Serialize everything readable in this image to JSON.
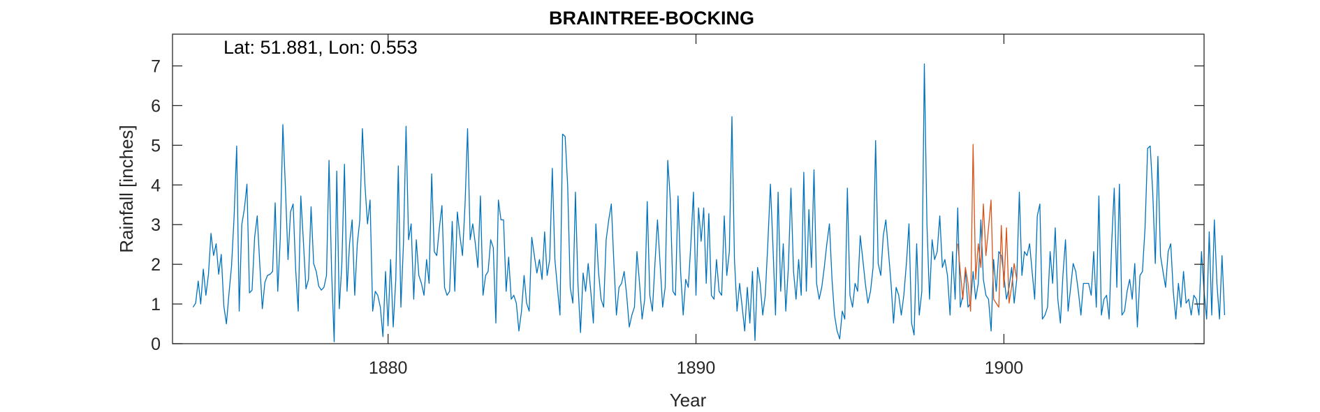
{
  "chart_data": {
    "type": "line",
    "title": "BRAINTREE-BOCKING",
    "xlabel": "Year",
    "ylabel": "Rainfall [inches]",
    "annotation": "Lat: 51.881, Lon: 0.553",
    "xlim": [
      1873.0,
      1906.5
    ],
    "ylim": [
      0,
      7.8
    ],
    "xticks": [
      1880,
      1890,
      1900
    ],
    "yticks": [
      0,
      1,
      2,
      3,
      4,
      5,
      6,
      7
    ],
    "grid": false,
    "legend": "none",
    "colors": {
      "primary": "#0072BD",
      "secondary": "#D95319",
      "axis": "#262626"
    },
    "series": [
      {
        "x_start": 1873.667,
        "x_step": 0.0833333,
        "values": [
          0.92,
          1.02,
          1.58,
          1.0,
          1.88,
          1.22,
          1.75,
          2.78,
          2.22,
          2.52,
          1.75,
          2.25,
          0.95,
          0.5,
          1.25,
          1.95,
          3.2,
          4.98,
          0.82,
          3.0,
          3.4,
          4.02,
          1.28,
          1.35,
          2.68,
          3.22,
          2.02,
          0.88,
          1.55,
          1.72,
          1.75,
          1.82,
          3.55,
          1.32,
          2.65,
          5.52,
          3.92,
          2.12,
          3.32,
          3.52,
          1.85,
          0.82,
          3.72,
          2.58,
          1.38,
          1.62,
          3.45,
          2.02,
          1.82,
          1.45,
          1.35,
          1.42,
          1.72,
          4.62,
          1.82,
          0.05,
          4.35,
          0.88,
          2.02,
          4.52,
          1.32,
          2.52,
          3.12,
          1.22,
          2.52,
          3.12,
          5.42,
          3.98,
          3.02,
          3.62,
          0.82,
          1.32,
          1.22,
          0.92,
          0.18,
          1.82,
          0.45,
          2.12,
          0.42,
          1.62,
          4.48,
          0.92,
          2.52,
          5.48,
          2.62,
          3.02,
          1.12,
          2.62,
          1.72,
          1.52,
          1.22,
          2.12,
          1.52,
          4.28,
          2.32,
          2.22,
          2.92,
          3.48,
          1.42,
          1.22,
          1.32,
          3.08,
          1.32,
          3.32,
          2.72,
          2.22,
          3.52,
          5.42,
          2.62,
          3.02,
          2.52,
          1.92,
          3.72,
          1.22,
          1.72,
          1.82,
          2.62,
          2.42,
          0.52,
          3.62,
          3.12,
          3.12,
          1.32,
          2.18,
          1.12,
          1.22,
          1.02,
          0.32,
          0.82,
          1.72,
          1.02,
          0.82,
          2.68,
          2.22,
          1.78,
          2.12,
          1.62,
          2.82,
          1.72,
          2.12,
          4.42,
          2.12,
          1.42,
          0.72,
          5.28,
          5.22,
          3.98,
          1.42,
          1.02,
          3.82,
          1.52,
          0.28,
          1.78,
          1.32,
          2.02,
          1.32,
          0.52,
          3.02,
          1.82,
          1.12,
          0.92,
          2.62,
          3.12,
          3.52,
          2.02,
          0.72,
          1.42,
          1.52,
          1.82,
          1.22,
          0.42,
          0.72,
          0.92,
          2.32,
          1.52,
          0.62,
          1.12,
          3.58,
          1.22,
          0.82,
          2.02,
          3.12,
          2.02,
          0.92,
          1.42,
          4.62,
          3.62,
          1.32,
          1.22,
          3.72,
          1.82,
          0.72,
          1.62,
          1.42,
          2.52,
          3.82,
          1.22,
          3.42,
          2.58,
          3.42,
          1.52,
          3.28,
          1.22,
          1.12,
          2.12,
          1.32,
          1.22,
          3.22,
          1.72,
          2.32,
          5.72,
          2.12,
          0.82,
          1.52,
          0.92,
          0.32,
          1.42,
          0.52,
          1.82,
          0.08,
          1.92,
          1.52,
          0.72,
          1.22,
          2.52,
          4.02,
          2.42,
          0.72,
          3.82,
          1.32,
          2.52,
          0.82,
          1.92,
          3.92,
          1.82,
          1.12,
          2.12,
          1.22,
          4.32,
          1.32,
          3.38,
          1.92,
          4.38,
          1.52,
          1.12,
          1.42,
          1.92,
          2.52,
          3.02,
          1.62,
          0.72,
          0.32,
          0.12,
          0.82,
          0.62,
          3.92,
          1.22,
          0.92,
          1.52,
          1.32,
          2.72,
          2.12,
          1.52,
          1.02,
          1.32,
          1.92,
          5.12,
          2.02,
          1.72,
          2.72,
          3.12,
          2.32,
          1.52,
          0.52,
          1.42,
          1.22,
          0.72,
          1.22,
          2.02,
          3.02,
          0.52,
          0.22,
          2.52,
          0.72,
          1.32,
          7.05,
          3.02,
          1.12,
          2.62,
          2.12,
          2.32,
          3.22,
          1.92,
          2.12,
          1.72,
          0.72,
          2.32,
          1.12,
          3.42,
          0.92,
          1.22,
          1.82,
          0.92,
          1.02,
          1.82,
          1.12,
          1.52,
          3.12,
          1.62,
          1.22,
          1.12,
          0.32,
          2.12,
          1.32,
          2.32,
          2.22,
          1.72,
          1.12,
          1.42,
          1.92,
          1.02,
          1.62,
          3.82,
          1.72,
          2.32,
          2.22,
          2.52,
          1.82,
          1.12,
          3.22,
          3.52,
          0.62,
          0.72,
          0.92,
          2.32,
          1.52,
          2.92,
          1.12,
          0.52,
          1.72,
          2.62,
          0.82,
          1.42,
          2.02,
          1.82,
          1.32,
          0.72,
          1.52,
          1.52,
          1.52,
          1.22,
          2.32,
          0.92,
          3.72,
          0.72,
          1.12,
          1.22,
          0.62,
          2.52,
          3.92,
          1.42,
          4.02,
          0.72,
          0.82,
          1.32,
          1.62,
          1.12,
          2.02,
          0.42,
          1.72,
          1.82,
          2.92,
          4.92,
          4.98,
          3.82,
          2.02,
          4.72,
          2.22,
          1.82,
          1.42,
          2.32,
          2.52,
          1.32,
          0.62,
          1.52,
          0.92,
          1.82,
          1.02,
          1.12,
          0.72,
          1.22,
          1.12,
          0.72,
          2.32,
          1.32,
          0.62,
          2.82,
          0.72,
          3.12,
          1.52,
          0.62,
          2.22,
          0.72
        ]
      },
      {
        "x_start": 1898.5,
        "x_step": 0.0833333,
        "values": [
          2.52,
          1.82,
          1.12,
          1.92,
          1.52,
          0.82,
          5.02,
          1.62,
          2.52,
          1.92,
          3.52,
          2.22,
          2.92,
          3.62,
          1.12,
          1.02,
          0.92,
          2.98,
          1.42,
          2.92,
          1.02,
          1.42,
          2.02,
          1.62
        ]
      }
    ]
  }
}
